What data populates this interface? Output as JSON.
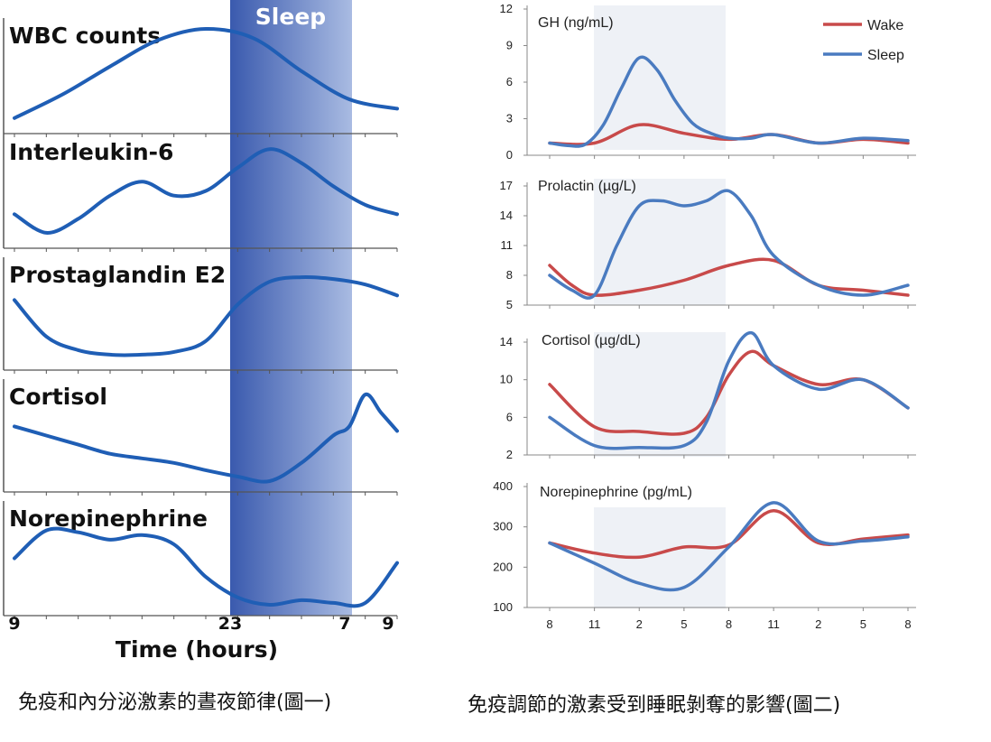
{
  "charts": [
    {
      "id": "left",
      "band_label": "Sleep",
      "x_title": "Time (hours)",
      "x_ticks": [
        "9",
        "23",
        "7",
        "9"
      ],
      "panels": [
        {
          "label": "WBC counts"
        },
        {
          "label": "Interleukin-6"
        },
        {
          "label": "Prostaglandin E2"
        },
        {
          "label": "Cortisol"
        },
        {
          "label": "Norepinephrine"
        }
      ]
    },
    {
      "id": "right",
      "x_ticks": [
        "8",
        "11",
        "2",
        "5",
        "8",
        "11",
        "2",
        "5",
        "8"
      ],
      "legend": [
        {
          "name": "Wake",
          "color": "#c84a4a"
        },
        {
          "name": "Sleep",
          "color": "#4a7bc0"
        }
      ],
      "panels": [
        {
          "label": "GH (ng/mL)",
          "y_ticks": [
            "12",
            "9",
            "6",
            "3",
            "0"
          ]
        },
        {
          "label": "Prolactin (µg/L)",
          "y_ticks": [
            "17",
            "14",
            "11",
            "8",
            "5"
          ]
        },
        {
          "label": "Cortisol (µg/dL)",
          "y_ticks": [
            "14",
            "10",
            "6",
            "2"
          ]
        },
        {
          "label": "Norepinephrine (pg/mL)",
          "y_ticks": [
            "400",
            "300",
            "200",
            "100"
          ]
        }
      ]
    }
  ],
  "chart_data": [
    {
      "type": "line",
      "series": [
        {
          "name": "WBC counts",
          "x": [
            0,
            3,
            6,
            9,
            12,
            15,
            18,
            21,
            24
          ],
          "values": [
            0.05,
            0.3,
            0.6,
            0.88,
            1.0,
            0.9,
            0.55,
            0.25,
            0.15
          ]
        },
        {
          "name": "Interleukin-6",
          "x": [
            0,
            2,
            4,
            6,
            8,
            10,
            12,
            14,
            16,
            18,
            20,
            22,
            24
          ],
          "values": [
            0.25,
            0.05,
            0.2,
            0.45,
            0.6,
            0.45,
            0.5,
            0.75,
            0.95,
            0.8,
            0.55,
            0.35,
            0.25
          ]
        },
        {
          "name": "Prostaglandin E2",
          "x": [
            0,
            2,
            4,
            6,
            8,
            10,
            12,
            14,
            16,
            18,
            20,
            22,
            24
          ],
          "values": [
            0.65,
            0.25,
            0.1,
            0.05,
            0.05,
            0.08,
            0.2,
            0.6,
            0.85,
            0.9,
            0.88,
            0.82,
            0.7
          ]
        },
        {
          "name": "Cortisol",
          "x": [
            0,
            2,
            4,
            6,
            8,
            10,
            12,
            14,
            16,
            18,
            20,
            21,
            22,
            23,
            24
          ],
          "values": [
            0.6,
            0.5,
            0.4,
            0.3,
            0.25,
            0.2,
            0.12,
            0.05,
            0.0,
            0.2,
            0.5,
            0.6,
            0.95,
            0.75,
            0.55
          ]
        },
        {
          "name": "Norepinephrine",
          "x": [
            0,
            2,
            4,
            6,
            8,
            10,
            12,
            14,
            16,
            18,
            20,
            22,
            24
          ],
          "values": [
            0.5,
            0.8,
            0.78,
            0.7,
            0.75,
            0.65,
            0.3,
            0.08,
            0.0,
            0.05,
            0.02,
            0.02,
            0.45
          ]
        }
      ]
    },
    {
      "type": "line",
      "series": [
        {
          "name": "Wake",
          "x": [
            0,
            1,
            2,
            3,
            4,
            5,
            6,
            7,
            8
          ],
          "values": [
            1.0,
            1.0,
            2.5,
            1.8,
            1.3,
            1.7,
            1.0,
            1.3,
            1.0
          ]
        },
        {
          "name": "Sleep",
          "x": [
            0,
            0.4,
            0.8,
            1.2,
            1.6,
            2.0,
            2.4,
            2.8,
            3.2,
            3.6,
            4.0,
            4.5,
            5.0,
            6.0,
            7.0,
            8.0
          ],
          "values": [
            1.0,
            0.8,
            0.9,
            2.5,
            5.5,
            8.0,
            7.0,
            4.5,
            2.6,
            1.8,
            1.4,
            1.4,
            1.7,
            1.0,
            1.4,
            1.2
          ]
        }
      ]
    },
    {
      "type": "line",
      "series": [
        {
          "name": "Wake",
          "x": [
            0,
            0.5,
            1,
            2,
            3,
            4,
            5,
            6,
            7,
            8
          ],
          "values": [
            9.0,
            7.0,
            6.0,
            6.5,
            7.5,
            9.0,
            9.5,
            7.0,
            6.5,
            6.0
          ]
        },
        {
          "name": "Sleep",
          "x": [
            0,
            0.5,
            1,
            1.5,
            2,
            2.5,
            3,
            3.5,
            4,
            4.5,
            5,
            6,
            7,
            8
          ],
          "values": [
            8.0,
            6.5,
            6.0,
            11.0,
            15.0,
            15.5,
            15.0,
            15.5,
            16.5,
            14.0,
            10.0,
            7.0,
            6.0,
            7.0
          ]
        }
      ]
    },
    {
      "type": "line",
      "series": [
        {
          "name": "Wake",
          "x": [
            0,
            1,
            2,
            3,
            3.5,
            4,
            4.5,
            5,
            6,
            7,
            8
          ],
          "values": [
            9.5,
            5.0,
            4.5,
            4.3,
            6.0,
            10.5,
            13.0,
            11.5,
            9.5,
            10.0,
            7.0
          ]
        },
        {
          "name": "Sleep",
          "x": [
            0,
            1,
            2,
            3,
            3.5,
            4,
            4.5,
            5,
            6,
            7,
            8
          ],
          "values": [
            6.0,
            3.0,
            2.8,
            3.0,
            5.5,
            12.0,
            15.0,
            11.5,
            9.0,
            10.0,
            7.0
          ]
        }
      ]
    },
    {
      "type": "line",
      "series": [
        {
          "name": "Wake",
          "x": [
            0,
            1,
            2,
            3,
            4,
            5,
            6,
            7,
            8
          ],
          "values": [
            260,
            235,
            225,
            250,
            255,
            340,
            260,
            270,
            280
          ]
        },
        {
          "name": "Sleep",
          "x": [
            0,
            1,
            2,
            3,
            4,
            5,
            6,
            7,
            8
          ],
          "values": [
            260,
            210,
            160,
            150,
            250,
            360,
            265,
            265,
            275
          ]
        }
      ]
    }
  ],
  "captions": {
    "left": "免疫和內分泌激素的晝夜節律(圖一)",
    "right": "免疫調節的激素受到睡眠剝奪的影響(圖二)"
  }
}
